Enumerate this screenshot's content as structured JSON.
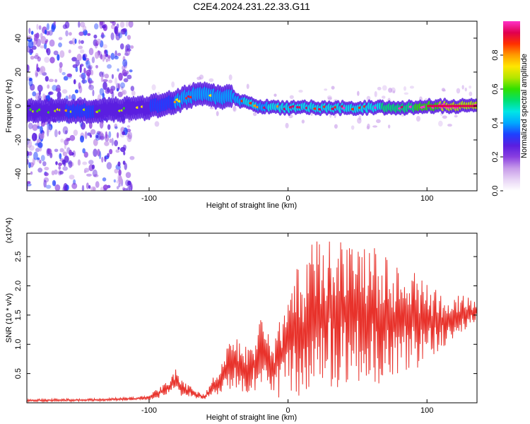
{
  "title": "C2E4.2024.231.22.33.G11",
  "colors": {
    "noise_purple": "#8a3fe0",
    "trace_red": "#e8322b",
    "frame": "#000000"
  },
  "chart_data": [
    {
      "type": "heatmap",
      "panel": "spectrogram",
      "xlabel": "Height of straight line (km)",
      "ylabel": "Frequency (Hz)",
      "xlim": [
        -188,
        136
      ],
      "ylim": [
        -50,
        50
      ],
      "xticks": [
        -100,
        0,
        100
      ],
      "yticks": [
        -40,
        -20,
        0,
        20,
        40
      ],
      "colorbar": {
        "label": "Normalized spectral amplitude",
        "range": [
          0,
          1
        ],
        "ticks": [
          "0.0",
          "0.2",
          "0.4",
          "0.6",
          "0.8"
        ],
        "colormap": [
          "#ffffff",
          "#e7d3f5",
          "#c79be9",
          "#8a3fe0",
          "#5a1ee0",
          "#1e40ff",
          "#00a8ff",
          "#00e6e6",
          "#00e070",
          "#30e000",
          "#b4e600",
          "#ffe600",
          "#ff9c00",
          "#ff3000",
          "#e00050",
          "#ff30c8"
        ]
      },
      "ridge": {
        "x": [
          -188,
          -160,
          -140,
          -120,
          -100,
          -90,
          -80,
          -70,
          -62,
          -55,
          -50,
          -45,
          -40,
          -35,
          -30,
          -25,
          -20,
          -10,
          0,
          20,
          40,
          60,
          80,
          100,
          120,
          136
        ],
        "frequency": [
          -3,
          -3,
          -3,
          -2,
          -1,
          1,
          3,
          6,
          7,
          6,
          5,
          6,
          5,
          3,
          2,
          1,
          0,
          -1,
          -1,
          -1,
          -1,
          -1,
          -1,
          0,
          0,
          0
        ],
        "amplitude": [
          0.35,
          0.4,
          0.4,
          0.35,
          0.4,
          0.45,
          0.5,
          0.55,
          0.55,
          0.5,
          0.5,
          0.55,
          0.5,
          0.55,
          0.6,
          0.6,
          0.55,
          0.6,
          0.6,
          0.65,
          0.65,
          0.65,
          0.7,
          0.8,
          0.9,
          0.9
        ]
      },
      "noise_region_x": [
        -188,
        -120
      ]
    },
    {
      "type": "line",
      "panel": "snr",
      "xlabel": "Height of straight line (km)",
      "ylabel": "SNR (10 * v/v)",
      "y_multiplier": "(x10^4)",
      "xlim": [
        -188,
        136
      ],
      "ylim": [
        0,
        2.9
      ],
      "xticks": [
        -100,
        0,
        100
      ],
      "yticks": [
        "0.5",
        "1.0",
        "1.5",
        "2.0",
        "2.5"
      ],
      "series": [
        {
          "color": "#e8322b",
          "x": [
            -188,
            -170,
            -150,
            -130,
            -110,
            -100,
            -95,
            -90,
            -85,
            -80,
            -75,
            -70,
            -65,
            -60,
            -55,
            -50,
            -45,
            -40,
            -35,
            -30,
            -25,
            -20,
            -15,
            -10,
            -5,
            0,
            5,
            10,
            15,
            20,
            25,
            30,
            35,
            40,
            45,
            50,
            55,
            60,
            65,
            70,
            75,
            80,
            85,
            90,
            95,
            100,
            105,
            110,
            115,
            120,
            125,
            130,
            136
          ],
          "envelope_low": [
            0.02,
            0.02,
            0.02,
            0.03,
            0.04,
            0.05,
            0.07,
            0.1,
            0.15,
            0.15,
            0.1,
            0.08,
            0.06,
            0.05,
            0.08,
            0.15,
            0.2,
            0.25,
            0.2,
            0.15,
            0.2,
            0.25,
            0.2,
            0.1,
            0.05,
            0.05,
            0.1,
            0.1,
            0.2,
            0.3,
            0.2,
            0.3,
            0.2,
            0.3,
            0.2,
            0.3,
            0.3,
            0.3,
            0.3,
            0.4,
            0.4,
            0.5,
            0.5,
            0.6,
            0.6,
            0.7,
            0.8,
            0.9,
            1.0,
            1.1,
            1.2,
            1.3,
            1.4
          ],
          "envelope_high": [
            0.06,
            0.07,
            0.07,
            0.08,
            0.1,
            0.15,
            0.22,
            0.3,
            0.42,
            0.62,
            0.35,
            0.3,
            0.2,
            0.15,
            0.4,
            0.55,
            0.9,
            1.15,
            1.05,
            1.0,
            1.1,
            1.45,
            1.2,
            1.1,
            1.6,
            2.0,
            2.3,
            2.35,
            2.6,
            2.85,
            2.75,
            2.9,
            2.85,
            2.85,
            2.75,
            2.75,
            2.7,
            2.8,
            2.65,
            2.55,
            2.4,
            2.35,
            2.3,
            2.35,
            2.25,
            2.2,
            2.0,
            1.9,
            1.8,
            1.85,
            1.85,
            1.8,
            1.75
          ]
        }
      ]
    }
  ]
}
